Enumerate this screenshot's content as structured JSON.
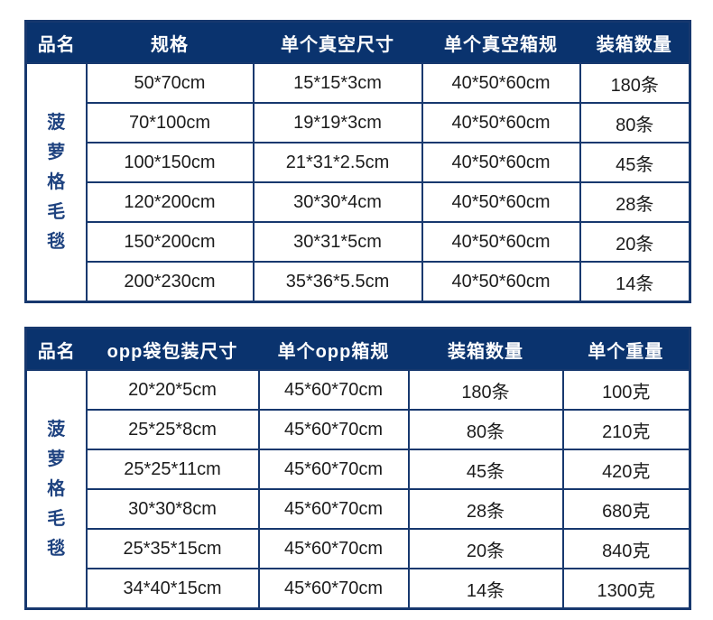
{
  "colors": {
    "header_background": "#0A336E",
    "table_border": "#17386E",
    "product_name_text": "#1F4380",
    "cell_text": "#1C1C1C",
    "header_text": "#FFFFFF",
    "page_background": "#FFFFFF"
  },
  "tables": [
    {
      "id": "vacuum-packing-table",
      "headers": [
        "品名",
        "规格",
        "单个真空尺寸",
        "单个真空箱规",
        "装箱数量"
      ],
      "product_name": "菠萝格毛毯",
      "rows": [
        [
          "50*70cm",
          "15*15*3cm",
          "40*50*60cm",
          "180条"
        ],
        [
          "70*100cm",
          "19*19*3cm",
          "40*50*60cm",
          "80条"
        ],
        [
          "100*150cm",
          "21*31*2.5cm",
          "40*50*60cm",
          "45条"
        ],
        [
          "120*200cm",
          "30*30*4cm",
          "40*50*60cm",
          "28条"
        ],
        [
          "150*200cm",
          "30*31*5cm",
          "40*50*60cm",
          "20条"
        ],
        [
          "200*230cm",
          "35*36*5.5cm",
          "40*50*60cm",
          "14条"
        ]
      ]
    },
    {
      "id": "opp-packing-table",
      "headers": [
        "品名",
        "opp袋包装尺寸",
        "单个opp箱规",
        "装箱数量",
        "单个重量"
      ],
      "product_name": "菠萝格毛毯",
      "rows": [
        [
          "20*20*5cm",
          "45*60*70cm",
          "180条",
          "100克"
        ],
        [
          "25*25*8cm",
          "45*60*70cm",
          "80条",
          "210克"
        ],
        [
          "25*25*11cm",
          "45*60*70cm",
          "45条",
          "420克"
        ],
        [
          "30*30*8cm",
          "45*60*70cm",
          "28条",
          "680克"
        ],
        [
          "25*35*15cm",
          "45*60*70cm",
          "20条",
          "840克"
        ],
        [
          "34*40*15cm",
          "45*60*70cm",
          "14条",
          "1300克"
        ]
      ]
    }
  ]
}
